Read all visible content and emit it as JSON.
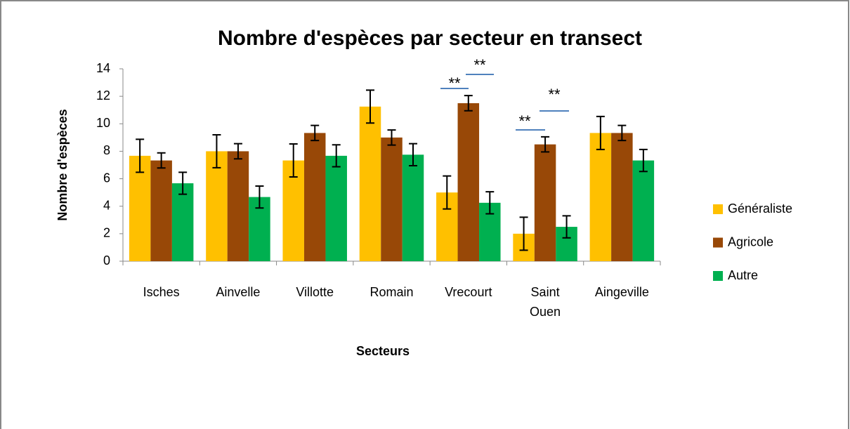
{
  "chart_data": {
    "type": "bar",
    "title": "Nombre d'espèces par secteur en transect",
    "xlabel": "Secteurs",
    "ylabel": "Nombre d'espèces",
    "categories": [
      "Isches",
      "Ainvelle",
      "Villotte",
      "Romain",
      "Vrecourt",
      "Saint Ouen",
      "Aingeville"
    ],
    "series": [
      {
        "name": "Généraliste",
        "color": "#FFC000",
        "values": [
          7.67,
          8,
          7.33,
          11.25,
          5,
          2,
          9.33
        ],
        "errors": [
          1.2,
          1.2,
          1.2,
          1.2,
          1.2,
          1.2,
          1.2
        ]
      },
      {
        "name": "Agricole",
        "color": "#984807",
        "values": [
          7.33,
          8,
          9.33,
          9,
          11.5,
          8.5,
          9.33
        ],
        "errors": [
          0.55,
          0.55,
          0.55,
          0.55,
          0.55,
          0.55,
          0.55
        ]
      },
      {
        "name": "Autre",
        "color": "#00B050",
        "values": [
          5.67,
          4.67,
          7.67,
          7.75,
          4.25,
          2.5,
          7.33
        ],
        "errors": [
          0.8,
          0.8,
          0.8,
          0.8,
          0.8,
          0.8,
          0.8
        ]
      }
    ],
    "annotations": [
      "**",
      "**",
      "**",
      "**"
    ],
    "ylim": [
      0,
      14
    ],
    "yticks": [
      0,
      2,
      4,
      6,
      8,
      10,
      12,
      14
    ],
    "legend": "right"
  }
}
